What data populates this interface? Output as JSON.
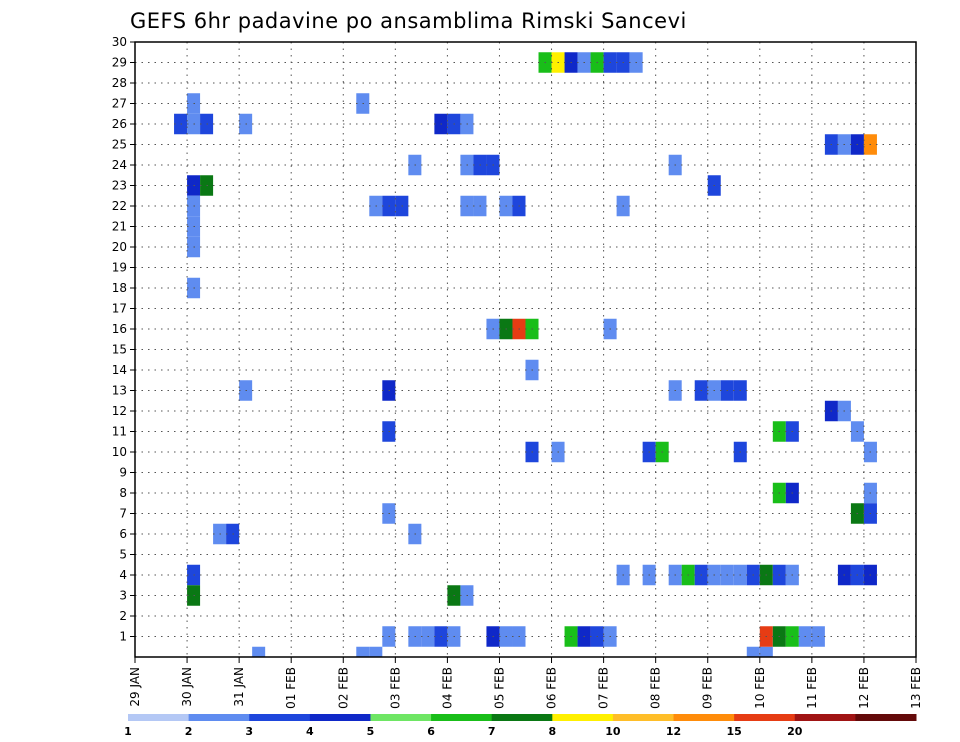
{
  "chart_data": {
    "type": "heatmap",
    "title": "GEFS 6hr padavine po ansamblima Rimski Sancevi",
    "x_tick_labels": [
      "29 JAN",
      "30 JAN",
      "31 JAN",
      "01 FEB",
      "02 FEB",
      "03 FEB",
      "04 FEB",
      "05 FEB",
      "06 FEB",
      "07 FEB",
      "08 FEB",
      "09 FEB",
      "10 FEB",
      "11 FEB",
      "12 FEB",
      "13 FEB"
    ],
    "y_tick_labels": [
      "1",
      "2",
      "3",
      "4",
      "5",
      "6",
      "7",
      "8",
      "9",
      "10",
      "11",
      "12",
      "13",
      "14",
      "15",
      "16",
      "17",
      "18",
      "19",
      "20",
      "21",
      "22",
      "23",
      "24",
      "25",
      "26",
      "27",
      "28",
      "29",
      "30"
    ],
    "xlim": [
      0,
      15
    ],
    "ylim": [
      0,
      30
    ],
    "grid": true,
    "colorbar": {
      "labels": [
        "1",
        "2",
        "3",
        "4",
        "5",
        "6",
        "7",
        "8",
        "10",
        "12",
        "15",
        "20"
      ],
      "colors": [
        "#b4c8f5",
        "#5f8cf0",
        "#1e46dc",
        "#0f28c8",
        "#6ee664",
        "#19be19",
        "#0a7814",
        "#fff000",
        "#ffbe28",
        "#ff8c0a",
        "#e63c14",
        "#a01414",
        "#640a0a"
      ]
    },
    "cells": [
      [
        1.0,
        27,
        1
      ],
      [
        0.75,
        26,
        2
      ],
      [
        1.0,
        26,
        1
      ],
      [
        1.25,
        26,
        2
      ],
      [
        2.0,
        26,
        1
      ],
      [
        1.0,
        23,
        3
      ],
      [
        1.25,
        23,
        6
      ],
      [
        1.0,
        22,
        1
      ],
      [
        1.0,
        21,
        1
      ],
      [
        1.0,
        20,
        1
      ],
      [
        1.0,
        18,
        1
      ],
      [
        1.0,
        4,
        2
      ],
      [
        1.0,
        3,
        6
      ],
      [
        1.5,
        6,
        1
      ],
      [
        1.75,
        6,
        2
      ],
      [
        2.0,
        13,
        1
      ],
      [
        2.25,
        0,
        1
      ],
      [
        4.25,
        27,
        1
      ],
      [
        4.5,
        22,
        1
      ],
      [
        4.75,
        22,
        2
      ],
      [
        5.0,
        22,
        2
      ],
      [
        5.25,
        24,
        1
      ],
      [
        4.75,
        13,
        3
      ],
      [
        4.75,
        11,
        2
      ],
      [
        4.75,
        7,
        1
      ],
      [
        5.25,
        6,
        1
      ],
      [
        4.25,
        0,
        1
      ],
      [
        4.5,
        0,
        1
      ],
      [
        4.75,
        1,
        1
      ],
      [
        5.25,
        1,
        1
      ],
      [
        5.5,
        1,
        1
      ],
      [
        5.75,
        1,
        2
      ],
      [
        6.0,
        1,
        1
      ],
      [
        5.75,
        26,
        3
      ],
      [
        6.0,
        26,
        2
      ],
      [
        6.25,
        26,
        1
      ],
      [
        6.25,
        24,
        1
      ],
      [
        6.5,
        24,
        2
      ],
      [
        6.75,
        24,
        2
      ],
      [
        6.25,
        22,
        1
      ],
      [
        6.5,
        22,
        1
      ],
      [
        7.0,
        22,
        1
      ],
      [
        7.25,
        22,
        2
      ],
      [
        6.0,
        3,
        6
      ],
      [
        6.25,
        3,
        1
      ],
      [
        6.75,
        16,
        1
      ],
      [
        7.0,
        16,
        6
      ],
      [
        7.25,
        16,
        10
      ],
      [
        7.5,
        16,
        5
      ],
      [
        7.5,
        14,
        1
      ],
      [
        7.5,
        10,
        2
      ],
      [
        8.0,
        10,
        1
      ],
      [
        6.75,
        1,
        3
      ],
      [
        7.0,
        1,
        1
      ],
      [
        7.25,
        1,
        1
      ],
      [
        7.75,
        29,
        5
      ],
      [
        8.0,
        29,
        7
      ],
      [
        8.25,
        29,
        3
      ],
      [
        8.5,
        29,
        1
      ],
      [
        8.75,
        29,
        5
      ],
      [
        9.0,
        29,
        2
      ],
      [
        9.25,
        29,
        2
      ],
      [
        9.5,
        29,
        1
      ],
      [
        9.25,
        22,
        1
      ],
      [
        9.0,
        16,
        1
      ],
      [
        9.25,
        4,
        1
      ],
      [
        8.25,
        1,
        5
      ],
      [
        8.5,
        1,
        3
      ],
      [
        8.75,
        1,
        2
      ],
      [
        9.0,
        1,
        1
      ],
      [
        10.25,
        24,
        1
      ],
      [
        10.25,
        13,
        1
      ],
      [
        10.75,
        13,
        2
      ],
      [
        11.0,
        13,
        1
      ],
      [
        11.25,
        13,
        2
      ],
      [
        11.5,
        13,
        2
      ],
      [
        9.75,
        10,
        2
      ],
      [
        10.0,
        10,
        5
      ],
      [
        11.5,
        10,
        2
      ],
      [
        11.0,
        23,
        2
      ],
      [
        9.75,
        4,
        1
      ],
      [
        10.25,
        4,
        1
      ],
      [
        10.5,
        4,
        5
      ],
      [
        10.75,
        4,
        2
      ],
      [
        11.0,
        4,
        1
      ],
      [
        11.25,
        4,
        1
      ],
      [
        11.5,
        4,
        1
      ],
      [
        11.75,
        4,
        2
      ],
      [
        12.0,
        4,
        6
      ],
      [
        12.25,
        4,
        2
      ],
      [
        12.5,
        4,
        1
      ],
      [
        12.25,
        11,
        5
      ],
      [
        12.5,
        11,
        2
      ],
      [
        12.25,
        8,
        5
      ],
      [
        12.5,
        8,
        3
      ],
      [
        11.75,
        0,
        1
      ],
      [
        12.0,
        0,
        1
      ],
      [
        12.0,
        1,
        10
      ],
      [
        12.25,
        1,
        6
      ],
      [
        12.5,
        1,
        5
      ],
      [
        12.75,
        1,
        1
      ],
      [
        13.0,
        1,
        1
      ],
      [
        13.25,
        25,
        2
      ],
      [
        13.5,
        25,
        1
      ],
      [
        13.75,
        25,
        3
      ],
      [
        14.0,
        25,
        9
      ],
      [
        13.25,
        12,
        3
      ],
      [
        13.5,
        12,
        1
      ],
      [
        13.75,
        11,
        1
      ],
      [
        14.0,
        10,
        1
      ],
      [
        14.0,
        8,
        1
      ],
      [
        14.0,
        7,
        2
      ],
      [
        13.75,
        7,
        6
      ],
      [
        13.5,
        4,
        3
      ],
      [
        13.75,
        4,
        2
      ],
      [
        14.0,
        4,
        3
      ]
    ]
  }
}
